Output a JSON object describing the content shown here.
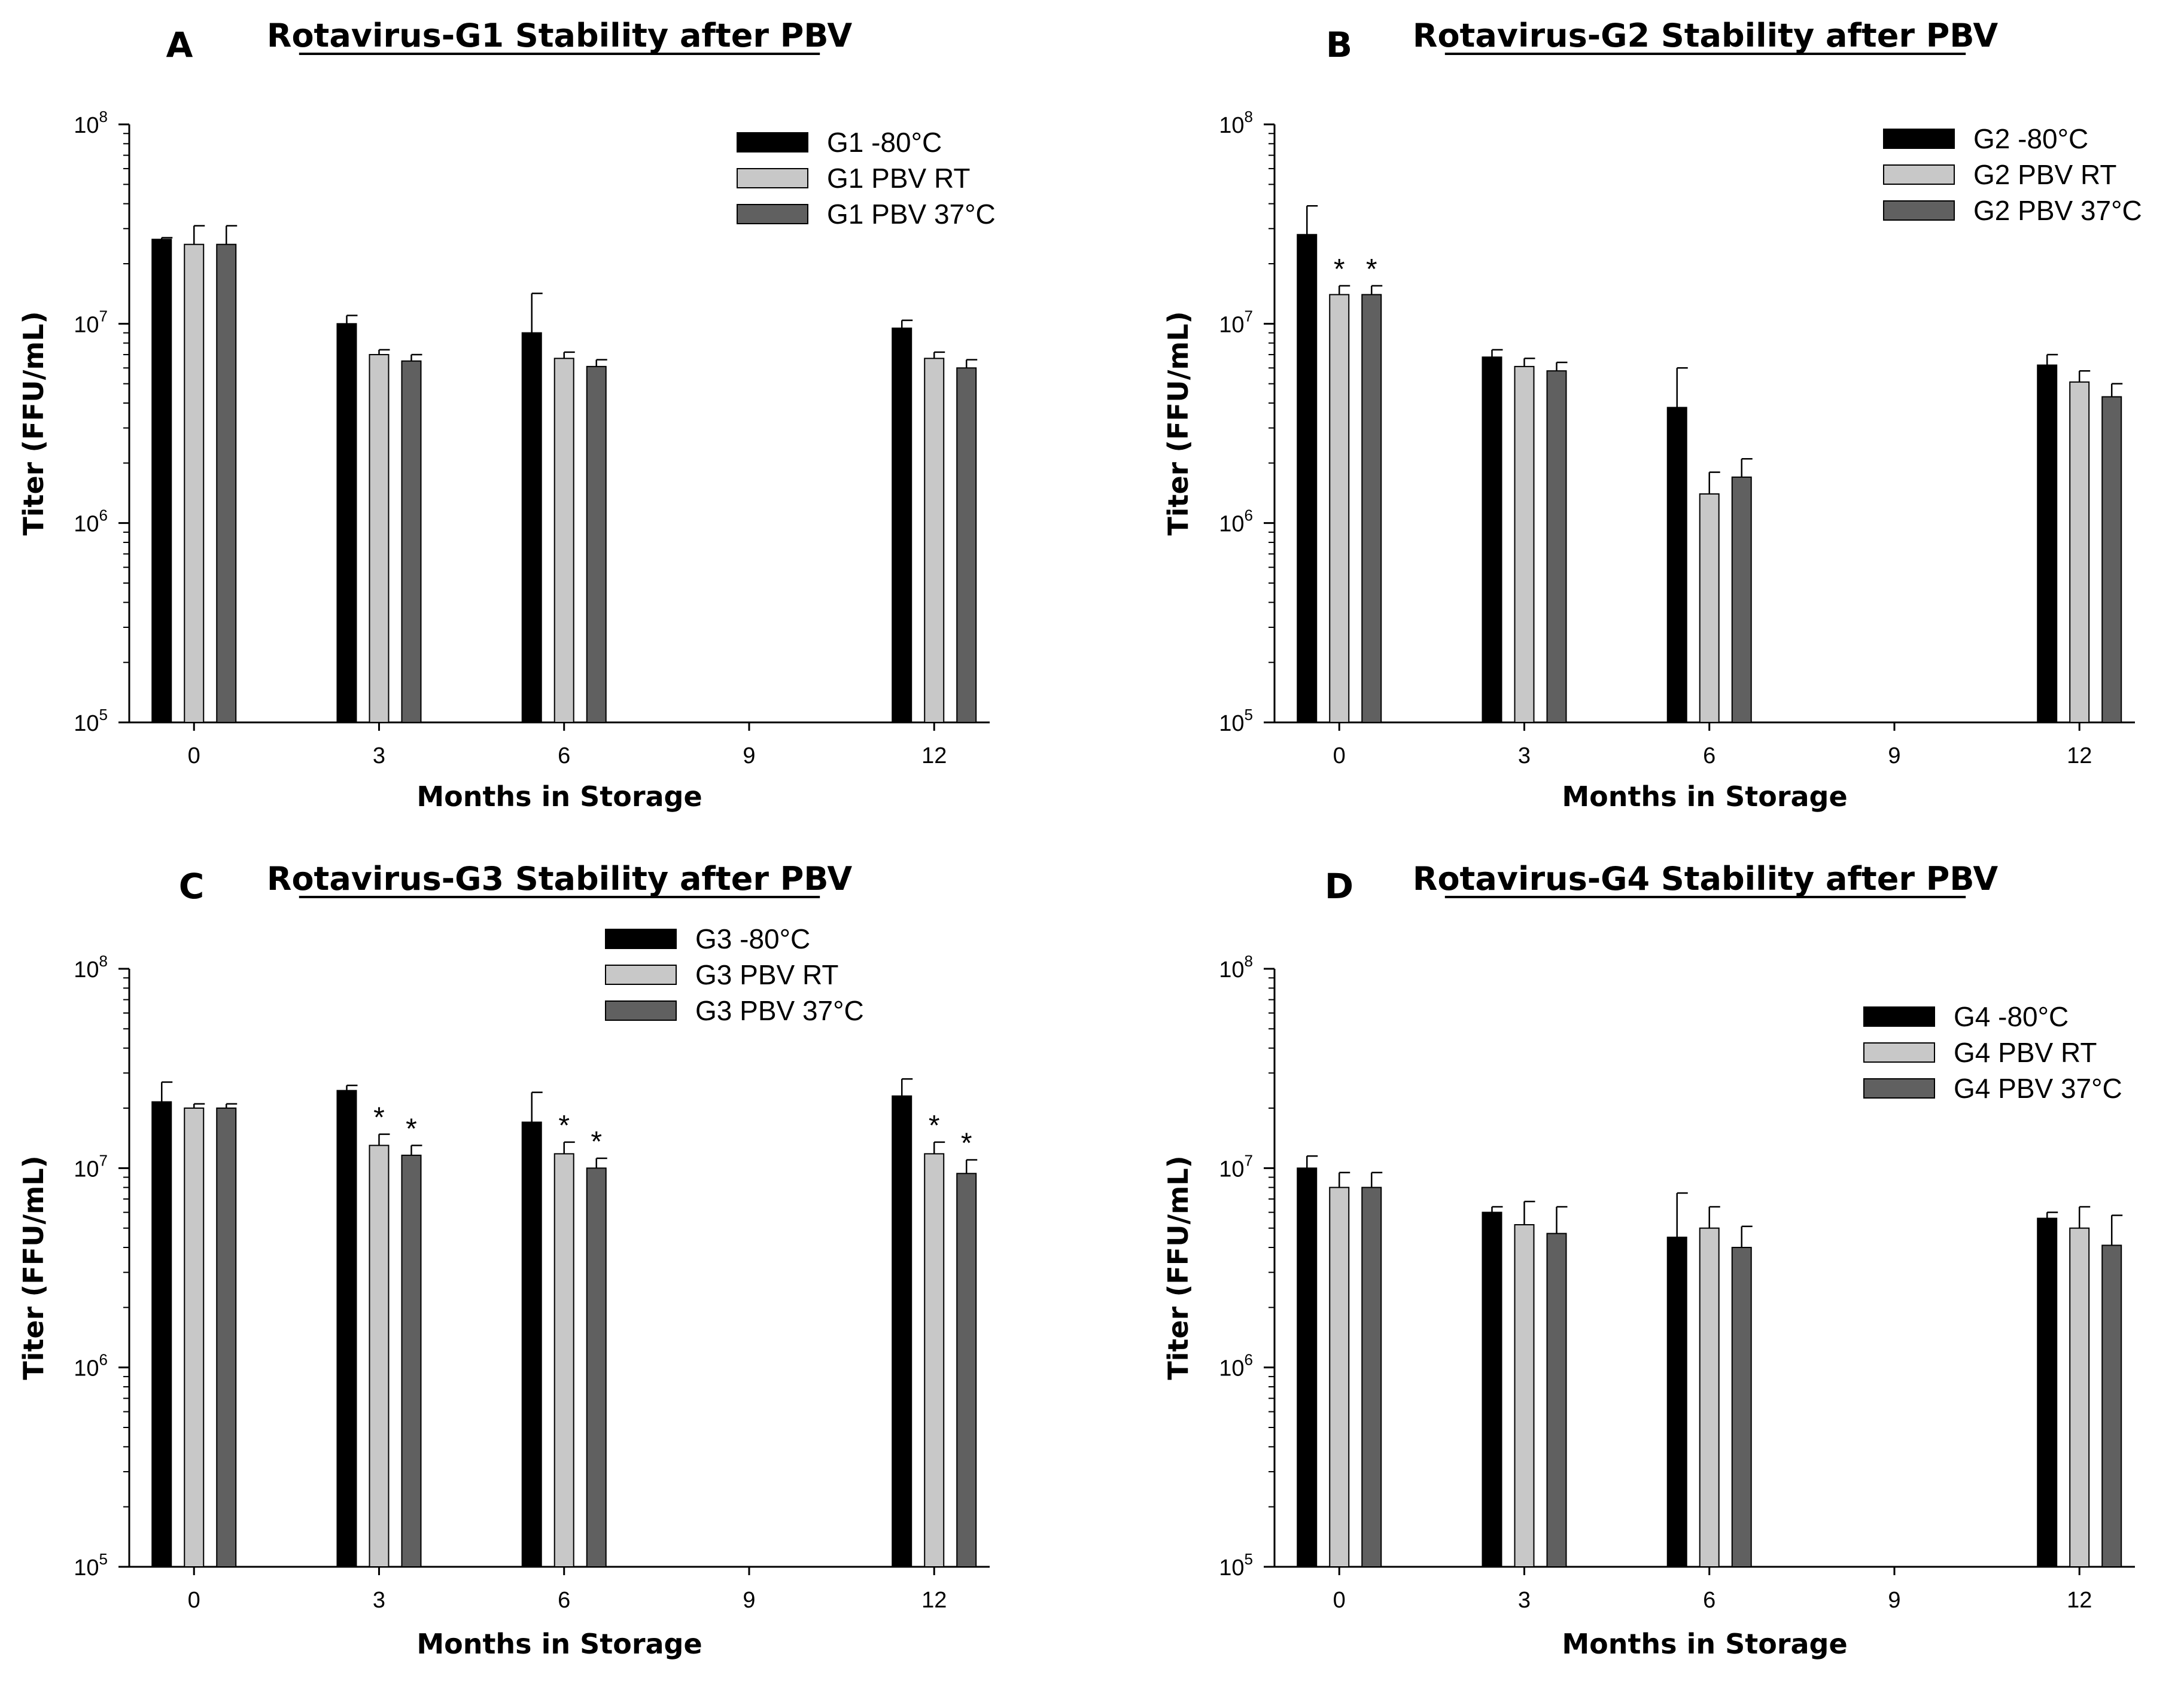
{
  "chart_data": [
    {
      "type": "bar",
      "panel": "A",
      "title": "Rotavirus-G1 Stability after PBV",
      "xlabel": "Months in Storage",
      "ylabel": "Titer (FFU/mL)",
      "yscale": "log",
      "ylim": [
        100000,
        100000000
      ],
      "yticks": [
        {
          "base": "10",
          "exp": "5"
        },
        {
          "base": "10",
          "exp": "6"
        },
        {
          "base": "10",
          "exp": "7"
        },
        {
          "base": "10",
          "exp": "8"
        }
      ],
      "categories": [
        "0",
        "3",
        "6",
        "9",
        "12"
      ],
      "legend_position": "top-right",
      "series": [
        {
          "name": "G1 -80°C",
          "color": "#000000",
          "values": [
            26500000,
            10000000,
            9000000,
            null,
            9500000
          ],
          "errors": [
            27000000,
            11000000,
            14200000,
            null,
            10400000
          ]
        },
        {
          "name": "G1 PBV RT",
          "color": "#c8c8c8",
          "values": [
            25000000,
            7000000,
            6700000,
            null,
            6700000
          ],
          "errors": [
            31000000,
            7400000,
            7200000,
            null,
            7200000
          ]
        },
        {
          "name": "G1 PBV 37°C",
          "color": "#606060",
          "values": [
            25000000,
            6500000,
            6100000,
            null,
            6000000
          ],
          "errors": [
            31000000,
            7000000,
            6600000,
            null,
            6600000
          ]
        }
      ],
      "significance": []
    },
    {
      "type": "bar",
      "panel": "B",
      "title": "Rotavirus-G2 Stability after PBV",
      "xlabel": "Months in Storage",
      "ylabel": "Titer (FFU/mL)",
      "yscale": "log",
      "ylim": [
        100000,
        100000000
      ],
      "yticks": [
        {
          "base": "10",
          "exp": "5"
        },
        {
          "base": "10",
          "exp": "6"
        },
        {
          "base": "10",
          "exp": "7"
        },
        {
          "base": "10",
          "exp": "8"
        }
      ],
      "categories": [
        "0",
        "3",
        "6",
        "9",
        "12"
      ],
      "legend_position": "top-right",
      "series": [
        {
          "name": "G2 -80°C",
          "color": "#000000",
          "values": [
            28000000,
            6800000,
            3800000,
            null,
            6200000
          ],
          "errors": [
            39000000,
            7400000,
            6000000,
            null,
            7000000
          ]
        },
        {
          "name": "G2 PBV RT",
          "color": "#c8c8c8",
          "values": [
            14000000,
            6100000,
            1400000,
            null,
            5100000
          ],
          "errors": [
            15500000,
            6700000,
            1800000,
            null,
            5800000
          ]
        },
        {
          "name": "G2 PBV 37°C",
          "color": "#606060",
          "values": [
            14000000,
            5800000,
            1700000,
            null,
            4300000
          ],
          "errors": [
            15500000,
            6400000,
            2100000,
            null,
            5000000
          ]
        }
      ],
      "significance": [
        {
          "category": "0",
          "series": 1,
          "label": "*"
        },
        {
          "category": "0",
          "series": 2,
          "label": "*"
        }
      ]
    },
    {
      "type": "bar",
      "panel": "C",
      "title": "Rotavirus-G3 Stability after PBV",
      "xlabel": "Months in Storage",
      "ylabel": "Titer (FFU/mL)",
      "yscale": "log",
      "ylim": [
        100000,
        100000000
      ],
      "yticks": [
        {
          "base": "10",
          "exp": "5"
        },
        {
          "base": "10",
          "exp": "6"
        },
        {
          "base": "10",
          "exp": "7"
        },
        {
          "base": "10",
          "exp": "8"
        }
      ],
      "categories": [
        "0",
        "3",
        "6",
        "9",
        "12"
      ],
      "legend_position": "top-center",
      "series": [
        {
          "name": "G3 -80°C",
          "color": "#000000",
          "values": [
            21500000,
            24500000,
            17000000,
            null,
            23000000
          ],
          "errors": [
            27000000,
            26000000,
            24000000,
            null,
            28000000
          ]
        },
        {
          "name": "G3 PBV RT",
          "color": "#c8c8c8",
          "values": [
            20000000,
            13000000,
            11800000,
            null,
            11800000
          ],
          "errors": [
            21000000,
            14800000,
            13500000,
            null,
            13500000
          ]
        },
        {
          "name": "G3 PBV 37°C",
          "color": "#606060",
          "values": [
            20000000,
            11600000,
            10000000,
            null,
            9400000
          ],
          "errors": [
            21000000,
            13000000,
            11200000,
            null,
            11000000
          ]
        }
      ],
      "significance": [
        {
          "category": "3",
          "series": 1,
          "label": "*"
        },
        {
          "category": "3",
          "series": 2,
          "label": "*"
        },
        {
          "category": "6",
          "series": 1,
          "label": "*"
        },
        {
          "category": "6",
          "series": 2,
          "label": "*"
        },
        {
          "category": "12",
          "series": 1,
          "label": "*"
        },
        {
          "category": "12",
          "series": 2,
          "label": "*"
        }
      ]
    },
    {
      "type": "bar",
      "panel": "D",
      "title": "Rotavirus-G4 Stability after PBV",
      "xlabel": "Months in Storage",
      "ylabel": "Titer (FFU/mL)",
      "yscale": "log",
      "ylim": [
        100000,
        100000000
      ],
      "yticks": [
        {
          "base": "10",
          "exp": "5"
        },
        {
          "base": "10",
          "exp": "6"
        },
        {
          "base": "10",
          "exp": "7"
        },
        {
          "base": "10",
          "exp": "8"
        }
      ],
      "categories": [
        "0",
        "3",
        "6",
        "9",
        "12"
      ],
      "legend_position": "top-right",
      "series": [
        {
          "name": "G4 -80°C",
          "color": "#000000",
          "values": [
            10000000,
            6000000,
            4500000,
            null,
            5600000
          ],
          "errors": [
            11500000,
            6400000,
            7500000,
            null,
            6000000
          ]
        },
        {
          "name": "G4 PBV RT",
          "color": "#c8c8c8",
          "values": [
            8000000,
            5200000,
            5000000,
            null,
            5000000
          ],
          "errors": [
            9500000,
            6800000,
            6400000,
            null,
            6400000
          ]
        },
        {
          "name": "G4 PBV 37°C",
          "color": "#606060",
          "values": [
            8000000,
            4700000,
            4000000,
            null,
            4100000
          ],
          "errors": [
            9500000,
            6400000,
            5100000,
            null,
            5800000
          ]
        }
      ],
      "significance": []
    }
  ]
}
